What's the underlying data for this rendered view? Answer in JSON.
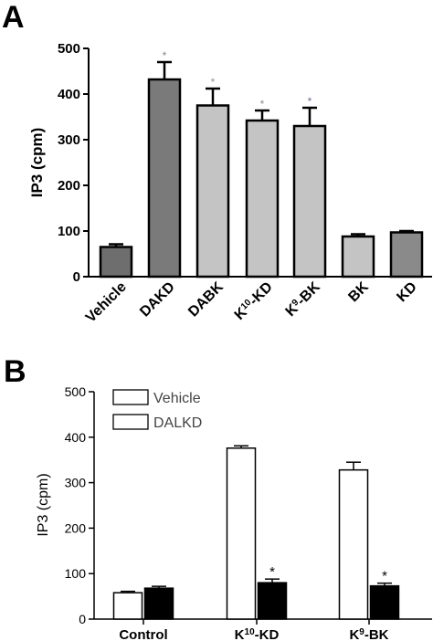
{
  "chart_data": [
    {
      "panel": "A",
      "type": "bar",
      "ylabel": "IP3 (cpm)",
      "ylim": [
        0,
        500
      ],
      "yticks": [
        0,
        100,
        200,
        300,
        400,
        500
      ],
      "categories": [
        "Vehicle",
        "DAKD",
        "DABK",
        "K10-KD",
        "K9-BK",
        "BK",
        "KD"
      ],
      "values": [
        65,
        432,
        375,
        342,
        330,
        88,
        97
      ],
      "errors": [
        6,
        38,
        37,
        22,
        40,
        5,
        3
      ],
      "significant": [
        false,
        true,
        true,
        true,
        true,
        false,
        false
      ],
      "significance_marker": "*",
      "colors": [
        "#6e6e6e",
        "#7a7a7a",
        "#c4c4c4",
        "#c4c4c4",
        "#c4c4c4",
        "#c4c4c4",
        "#8a8a8a"
      ],
      "marker_colors": [
        "",
        "#8a8a6a",
        "#8a9a9a",
        "#8a8aaa",
        "#6a6aaa",
        "",
        ""
      ]
    },
    {
      "panel": "B",
      "type": "bar",
      "ylabel": "IP3 (cpm)",
      "ylim": [
        0,
        500
      ],
      "yticks": [
        0,
        100,
        200,
        300,
        400,
        500
      ],
      "categories": [
        "Control",
        "K10-KD",
        "K9-BK"
      ],
      "series": [
        {
          "name": "Vehicle",
          "values": [
            58,
            376,
            328
          ],
          "errors": [
            3,
            5,
            17
          ],
          "color": "#ffffff",
          "significant": [
            false,
            false,
            false
          ]
        },
        {
          "name": "DALKD",
          "values": [
            68,
            80,
            73
          ],
          "errors": [
            4,
            8,
            6
          ],
          "color": "#000000",
          "significant": [
            false,
            true,
            true
          ]
        }
      ],
      "significance_marker": "*",
      "legend_position": "top-left"
    }
  ],
  "panels": {
    "a": {
      "letter": "A"
    },
    "b": {
      "letter": "B"
    }
  },
  "labels": {
    "a_categories": [
      {
        "pre": "Vehicle",
        "sup": "",
        "post": ""
      },
      {
        "pre": "DAKD",
        "sup": "",
        "post": ""
      },
      {
        "pre": "DABK",
        "sup": "",
        "post": ""
      },
      {
        "pre": "K",
        "sup": "10",
        "post": "-KD"
      },
      {
        "pre": "K",
        "sup": "9",
        "post": "-BK"
      },
      {
        "pre": "BK",
        "sup": "",
        "post": ""
      },
      {
        "pre": "KD",
        "sup": "",
        "post": ""
      }
    ],
    "b_categories": [
      {
        "pre": "Control",
        "sup": "",
        "post": ""
      },
      {
        "pre": "K",
        "sup": "10",
        "post": "-KD"
      },
      {
        "pre": "K",
        "sup": "9",
        "post": "-BK"
      }
    ]
  }
}
